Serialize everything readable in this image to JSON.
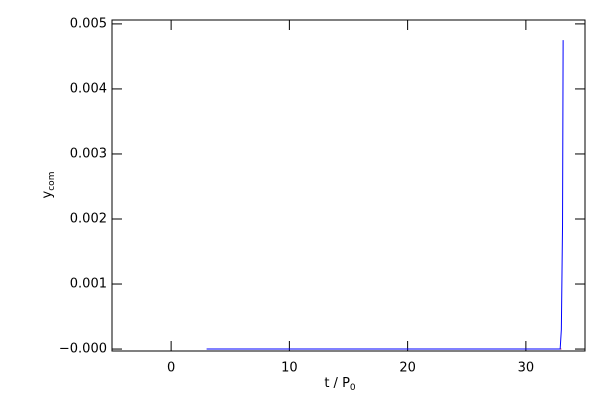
{
  "chart_data": {
    "type": "line",
    "xlabel": "t / P",
    "xlabel_sub": "0",
    "ylabel": "y",
    "ylabel_sub": "com",
    "xlim": [
      -5,
      35
    ],
    "xticks": [
      0,
      10,
      20,
      30
    ],
    "ylim": [
      -3e-05,
      0.00506
    ],
    "yticks": [
      {
        "value": 0,
        "label": "−0.000"
      },
      0.001,
      0.002,
      0.003,
      0.004,
      0.005
    ],
    "series": [
      {
        "color": "#ff0000",
        "x": [
          6,
          33
        ],
        "values": [
          0,
          0
        ]
      },
      {
        "color": "#0000ff",
        "x": [
          3,
          6,
          32.9,
          33.0,
          33.1,
          33.15
        ],
        "values": [
          0,
          0,
          0,
          0.0003,
          0.0019,
          0.00475
        ]
      }
    ]
  }
}
